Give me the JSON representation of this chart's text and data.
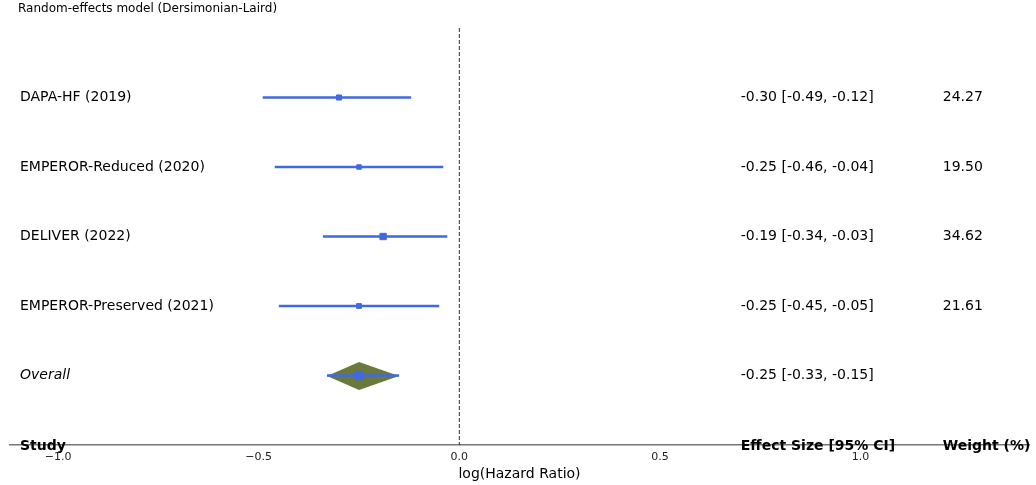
{
  "chart_data": {
    "type": "scatter",
    "title": "Random-effects model (Dersimonian-Laird)",
    "xlabel": "log(Hazard Ratio)",
    "categories": [
      "DAPA-HF (2019)",
      "EMPEROR-Reduced (2020)",
      "DELIVER (2022)",
      "EMPEROR-Preserved (2021)",
      "Overall"
    ],
    "orientation": "horizontal",
    "series": [
      {
        "color": "#4169e1",
        "marker": "square",
        "values": [
          -0.3,
          -0.25,
          -0.19,
          -0.25,
          null
        ],
        "sizes": [
          0.7,
          0.56,
          1,
          0.62,
          null
        ],
        "errors": [
          [
            -0.49,
            -0.12
          ],
          [
            -0.46,
            -0.04
          ],
          [
            -0.34,
            -0.03
          ],
          [
            -0.45,
            -0.05
          ],
          null
        ]
      },
      {
        "color": "#4169e1",
        "marker": "square",
        "values": [
          null,
          null,
          null,
          null,
          -0.25
        ],
        "errors": [
          null,
          null,
          null,
          null,
          [
            -0.33,
            -0.15
          ]
        ]
      }
    ],
    "annotations": [
      "Study",
      "Effect Size [95% CI]",
      "Weight (%)",
      "-0.30 [-0.49, -0.12]",
      "-0.25 [-0.46, -0.04]",
      "-0.19 [-0.34, -0.03]",
      "-0.25 [-0.45, -0.05]",
      "-0.25 [-0.33, -0.15]",
      "24.27",
      "19.50",
      "34.62",
      "21.61"
    ],
    "ref_lines": [
      {
        "axis": "x",
        "value": 0,
        "color": "#333333",
        "line_style": "dashed"
      }
    ],
    "xlim": [
      -1.12,
      1.42
    ],
    "xticks": [
      {
        "value": -1,
        "label": "−1.0"
      },
      {
        "value": -0.5,
        "label": "−0.5"
      },
      {
        "value": 0,
        "label": "0.0"
      },
      {
        "value": 0.5,
        "label": "0.5"
      },
      {
        "value": 1,
        "label": "1.0"
      }
    ],
    "grid": false,
    "legend": false
  }
}
